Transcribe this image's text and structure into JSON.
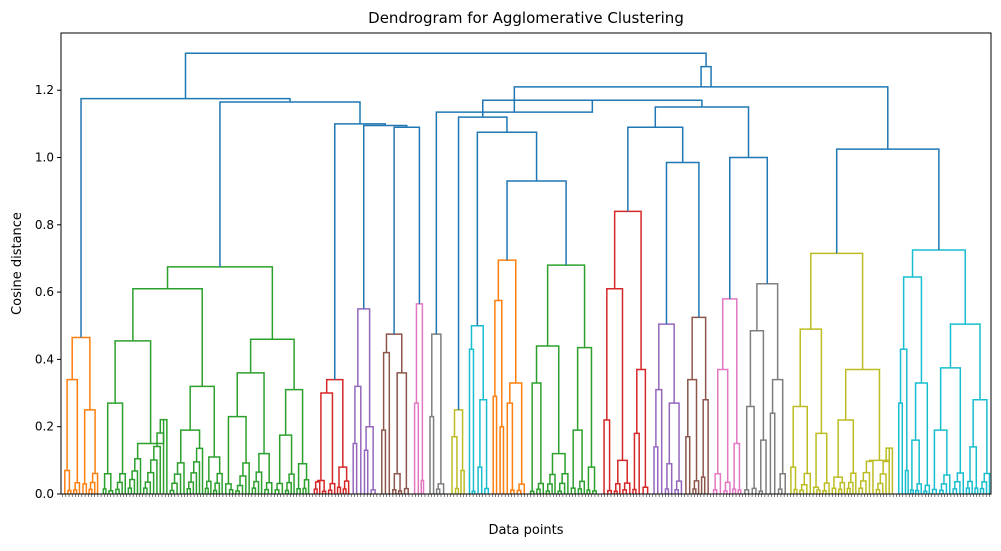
{
  "chart_data": {
    "type": "dendrogram",
    "title": "Dendrogram for Agglomerative Clustering",
    "xlabel": "Data points",
    "ylabel": "Cosine distance",
    "ylim": [
      0,
      1.37
    ],
    "yticks": [
      "0.0",
      "0.2",
      "0.4",
      "0.6",
      "0.8",
      "1.0",
      "1.2"
    ],
    "grid": false,
    "leaf_count": 290,
    "root_color": "#1f77b4",
    "top_merges": [
      {
        "name": "root",
        "height": 1.31
      },
      {
        "name": "left-main",
        "height": 1.175
      },
      {
        "name": "left-sub",
        "height": 1.165
      },
      {
        "name": "right-main",
        "height": 1.27
      },
      {
        "name": "right-sub",
        "height": 1.21
      },
      {
        "name": "right-mid",
        "height": 1.17
      },
      {
        "name": "cyan-yellow",
        "height": 1.025
      }
    ],
    "clusters": [
      {
        "color": "#ff7f0e",
        "height": 0.465,
        "sub_heights": [
          0.25,
          0.34,
          0.07,
          0.03
        ]
      },
      {
        "color": "#2ca02c",
        "height": 0.675,
        "sub_heights": [
          0.61,
          0.46,
          0.455,
          0.36,
          0.32,
          0.31,
          0.27,
          0.23,
          0.19,
          0.175,
          0.15,
          0.12,
          0.11,
          0.09,
          0.06,
          0.03
        ]
      },
      {
        "color": "#d62728",
        "height": 0.34,
        "sub_heights": [
          0.3,
          0.08,
          0.04,
          0.02
        ]
      },
      {
        "color": "#9467bd",
        "height": 0.55,
        "sub_heights": [
          0.32,
          0.2,
          0.15,
          0.13
        ]
      },
      {
        "color": "#8c564b",
        "height": 0.475,
        "sub_heights": [
          0.42,
          0.36,
          0.19,
          0.06
        ]
      },
      {
        "color": "#e377c2",
        "height": 0.565,
        "sub_heights": [
          0.27,
          0.04
        ]
      },
      {
        "color": "#7f7f7f",
        "height": 0.475,
        "sub_heights": [
          0.23,
          0.03
        ]
      },
      {
        "color": "#bcbd22",
        "height": 0.25,
        "sub_heights": [
          0.17,
          0.07
        ]
      },
      {
        "color": "#17becf",
        "height": 0.5,
        "sub_heights": [
          0.43,
          0.28,
          0.18,
          0.08
        ]
      },
      {
        "color": "#ff7f0e",
        "height": 0.695,
        "sub_heights": [
          0.575,
          0.33,
          0.29,
          0.27,
          0.2
        ]
      },
      {
        "color": "#2ca02c",
        "height": 0.68,
        "sub_heights": [
          0.44,
          0.435,
          0.33,
          0.19,
          0.12,
          0.08
        ]
      },
      {
        "color": "#d62728",
        "height": 0.84,
        "sub_heights": [
          0.61,
          0.37,
          0.22,
          0.18,
          0.1,
          0.02
        ]
      },
      {
        "color": "#9467bd",
        "height": 0.505,
        "sub_heights": [
          0.31,
          0.27,
          0.14,
          0.09
        ]
      },
      {
        "color": "#8c564b",
        "height": 0.525,
        "sub_heights": [
          0.34,
          0.28,
          0.17,
          0.05
        ]
      },
      {
        "color": "#e377c2",
        "height": 0.58,
        "sub_heights": [
          0.37,
          0.15,
          0.06
        ]
      },
      {
        "color": "#7f7f7f",
        "height": 0.625,
        "sub_heights": [
          0.485,
          0.34,
          0.26,
          0.24,
          0.16,
          0.06
        ]
      },
      {
        "color": "#bcbd22",
        "height": 0.715,
        "sub_heights": [
          0.49,
          0.37,
          0.26,
          0.22,
          0.18,
          0.1,
          0.08,
          0.05,
          0.02
        ]
      },
      {
        "color": "#17becf",
        "height": 0.725,
        "sub_heights": [
          0.645,
          0.505,
          0.43,
          0.375,
          0.33,
          0.28,
          0.27,
          0.19,
          0.16,
          0.14,
          0.07
        ]
      }
    ]
  }
}
